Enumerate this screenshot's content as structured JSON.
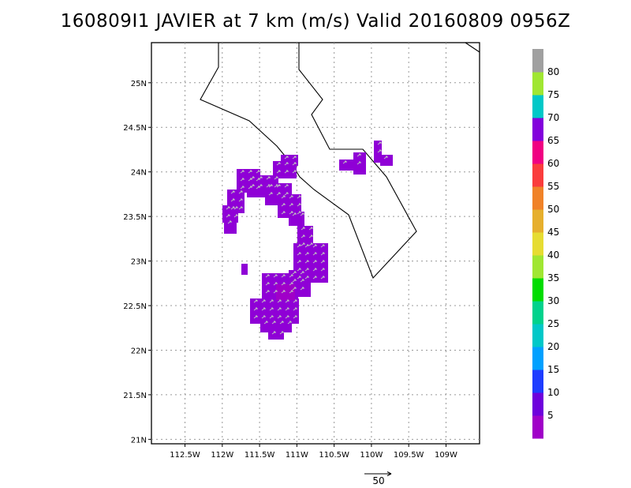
{
  "title": "160809I1 JAVIER at 7 km (m/s) Valid 20160809 0956Z",
  "map": {
    "lon_range": [
      -112.95,
      -108.55
    ],
    "lat_range": [
      20.95,
      25.45
    ],
    "x_ticks": [
      "112.5W",
      "112W",
      "111.5W",
      "111W",
      "110.5W",
      "110W",
      "109.5W",
      "109W"
    ],
    "y_ticks": [
      "25N",
      "24.5N",
      "24N",
      "23.5N",
      "23N",
      "22.5N",
      "22N",
      "21.5N",
      "21N"
    ],
    "grid": "dotted"
  },
  "colorbar": {
    "labels": [
      "5",
      "10",
      "15",
      "20",
      "25",
      "30",
      "35",
      "40",
      "45",
      "50",
      "55",
      "60",
      "65",
      "70",
      "75",
      "80"
    ],
    "colors": [
      "#a000c8",
      "#6e00dc",
      "#1e3cff",
      "#00a0ff",
      "#00c8c8",
      "#00d28c",
      "#00dc00",
      "#a0e632",
      "#e6dc32",
      "#e6af2d",
      "#f08228",
      "#fa3c3c",
      "#f00082",
      "#8200dc",
      "#00c8c8",
      "#a0e632",
      "#a0a0a0"
    ]
  },
  "reference_vector": {
    "label": "50"
  }
}
